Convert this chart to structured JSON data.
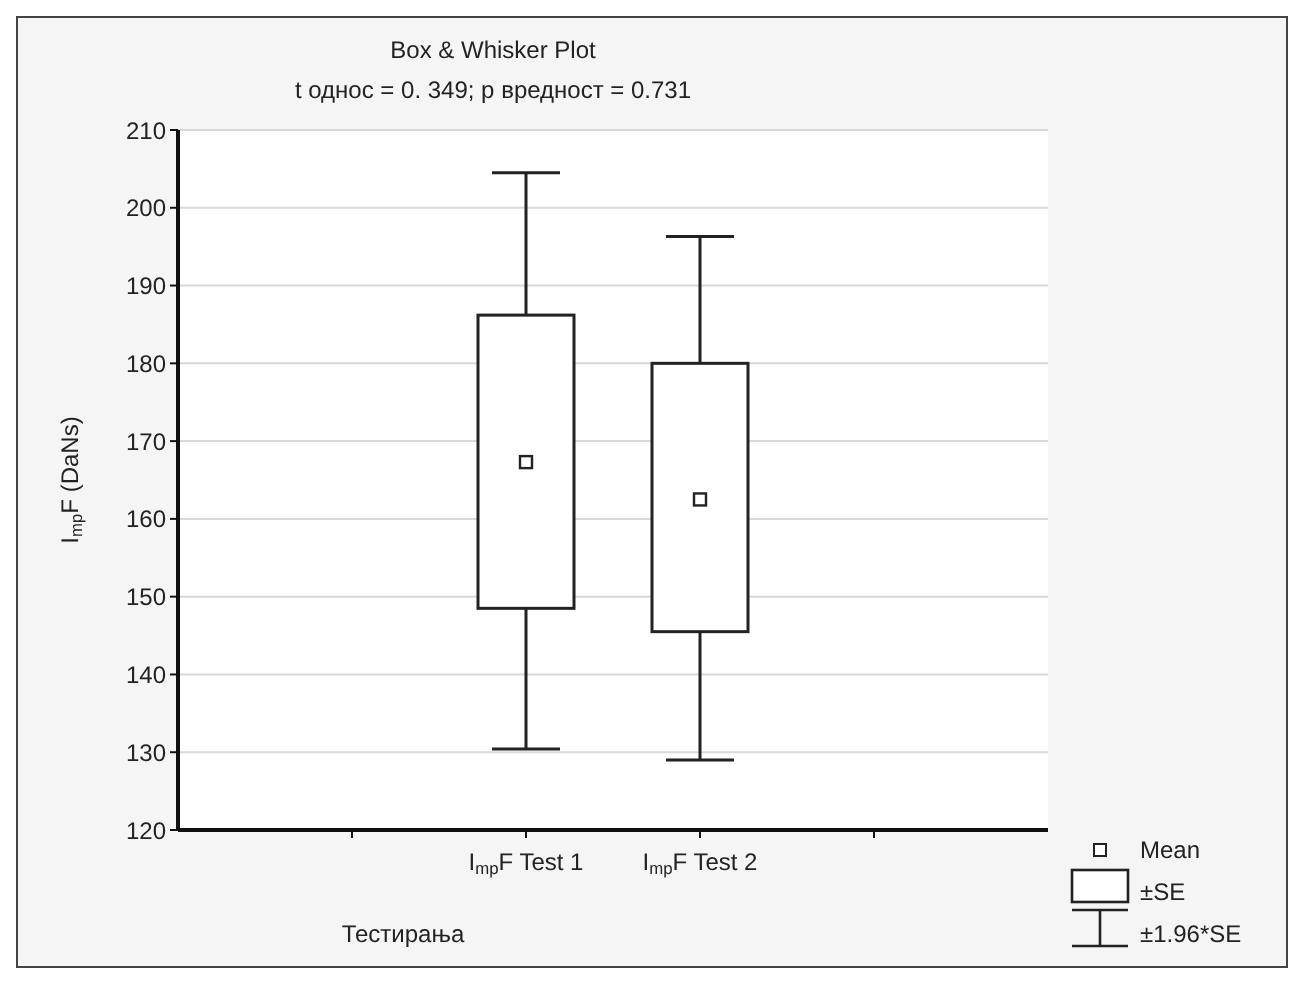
{
  "chart_data": {
    "type": "box",
    "title": "Box & Whisker Plot",
    "subtitle": "t однос = 0. 349; p вредност =  0.731",
    "xlabel": "Тестирања",
    "ylabel": "I$_{mp}$F (DaNs)",
    "categories": [
      "I$_{mp}$F Test 1",
      "I$_{mp}$F Test 2"
    ],
    "boxes": [
      {
        "low": 130.4,
        "q1": 148.5,
        "q3": 186.2,
        "high": 204.5,
        "mean": 167.3
      },
      {
        "low": 129,
        "q1": 145.5,
        "q3": 180,
        "high": 196.3,
        "mean": 162.5
      }
    ],
    "ylim": [
      120,
      210
    ],
    "yticks": [
      120,
      130,
      140,
      150,
      160,
      170,
      180,
      190,
      200,
      210
    ],
    "grid": "y",
    "annotations": [
      "Mean",
      "±SE",
      "±1.96*SE"
    ]
  }
}
